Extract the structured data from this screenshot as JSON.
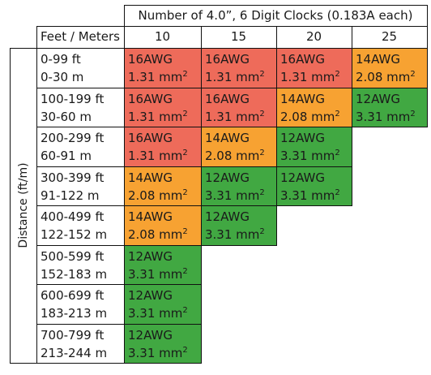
{
  "header": {
    "title": "Number of 4.0”, 6 Digit Clocks (0.183A each)",
    "corner_label": "Feet / Meters",
    "side_label": "Distance (ft/m)",
    "columns": [
      "10",
      "15",
      "20",
      "25"
    ]
  },
  "legend_colors": {
    "16AWG": "#ee6b5a",
    "14AWG": "#f7a232",
    "12AWG": "#41a842"
  },
  "gauges": {
    "16AWG": {
      "awg": "16AWG",
      "mm": "1.31 mm",
      "sup": "2"
    },
    "14AWG": {
      "awg": "14AWG",
      "mm": "2.08 mm",
      "sup": "2"
    },
    "12AWG": {
      "awg": "12AWG",
      "mm": "3.31 mm",
      "sup": "2"
    }
  },
  "rows": [
    {
      "feet": "0-99 ft",
      "meters": "0-30 m",
      "cells": [
        "16AWG",
        "16AWG",
        "16AWG",
        "14AWG"
      ]
    },
    {
      "feet": "100-199 ft",
      "meters": "30-60 m",
      "cells": [
        "16AWG",
        "16AWG",
        "14AWG",
        "12AWG"
      ]
    },
    {
      "feet": "200-299 ft",
      "meters": "60-91 m",
      "cells": [
        "16AWG",
        "14AWG",
        "12AWG"
      ]
    },
    {
      "feet": "300-399 ft",
      "meters": "91-122 m",
      "cells": [
        "14AWG",
        "12AWG",
        "12AWG"
      ]
    },
    {
      "feet": "400-499 ft",
      "meters": "122-152 m",
      "cells": [
        "14AWG",
        "12AWG"
      ]
    },
    {
      "feet": "500-599 ft",
      "meters": "152-183 m",
      "cells": [
        "12AWG"
      ]
    },
    {
      "feet": "600-699 ft",
      "meters": "183-213 m",
      "cells": [
        "12AWG"
      ]
    },
    {
      "feet": "700-799 ft",
      "meters": "213-244 m",
      "cells": [
        "12AWG"
      ]
    }
  ]
}
